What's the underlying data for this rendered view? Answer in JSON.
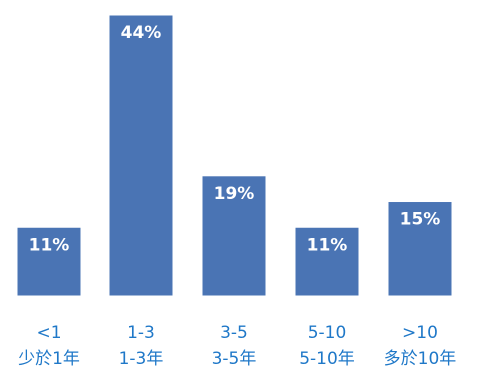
{
  "chart_data": {
    "type": "bar",
    "categories": [
      "<1",
      "1-3",
      "3-5",
      "5-10",
      ">10"
    ],
    "category_sublabels": [
      "少於1年",
      "1-3年",
      "3-5年",
      "5-10年",
      "多於10年"
    ],
    "values": [
      11,
      44,
      19,
      11,
      15
    ],
    "data_labels": [
      "11%",
      "44%",
      "19%",
      "11%",
      "15%"
    ],
    "unit": "%",
    "ylim": [
      0,
      44
    ],
    "grid": false,
    "legend": "none",
    "bar_color": "#4a74b4",
    "label_color": "#1f78c8"
  }
}
